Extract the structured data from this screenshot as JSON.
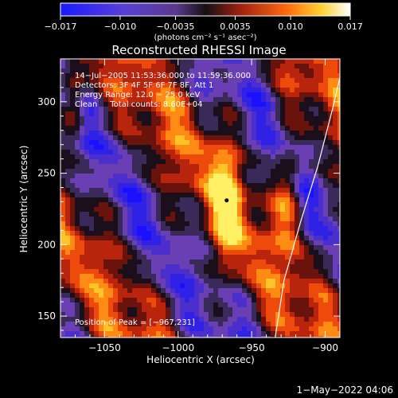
{
  "colorbar": {
    "ticks": [
      "-0.017",
      "-0.010",
      "-0.0035",
      "0.0035",
      "0.010",
      "0.017"
    ],
    "unit_label": "(photons cm⁻² s⁻¹ asec⁻²)",
    "range": [
      -0.017,
      0.017
    ]
  },
  "chart_data": {
    "type": "heatmap",
    "title": "Reconstructed RHESSI Image",
    "xlabel": "Heliocentric X (arcsec)",
    "ylabel": "Heliocentric Y (arcsec)",
    "xlim": [
      -1080,
      -890
    ],
    "ylim": [
      135,
      330
    ],
    "xticks": [
      -1050,
      -1000,
      -950,
      -900
    ],
    "yticks": [
      150,
      200,
      250,
      300
    ],
    "xtick_labels": [
      "−1050",
      "−1000",
      "−950",
      "−900"
    ],
    "ytick_labels": [
      "150",
      "200",
      "250",
      "300"
    ],
    "annotations": [
      "14−Jul−2005 11:53:36.000 to 11:59:36.000",
      "Detectors: 3F 4F 5F 6F 7F 8F, Att 1",
      "Energy Range: 12.0 − 25.0 keV",
      "Clean     Total counts: 8.60E+04"
    ],
    "peak_label": "Position of Peak = [−967,231]",
    "peak": [
      -967,
      231
    ],
    "limb_curve": [
      [
        -934,
        135
      ],
      [
        -928,
        175
      ],
      [
        -917,
        215
      ],
      [
        -905,
        255
      ],
      [
        -895,
        295
      ],
      [
        -887,
        330
      ]
    ],
    "colormap": [
      "#0a0dff",
      "#3d2bd9",
      "#7a43c6",
      "#14121a",
      "#8a1b10",
      "#e23a0b",
      "#ff9a18",
      "#ffe23a",
      "#ffffff"
    ]
  },
  "footer": {
    "date": "1−May−2022 04:06"
  }
}
